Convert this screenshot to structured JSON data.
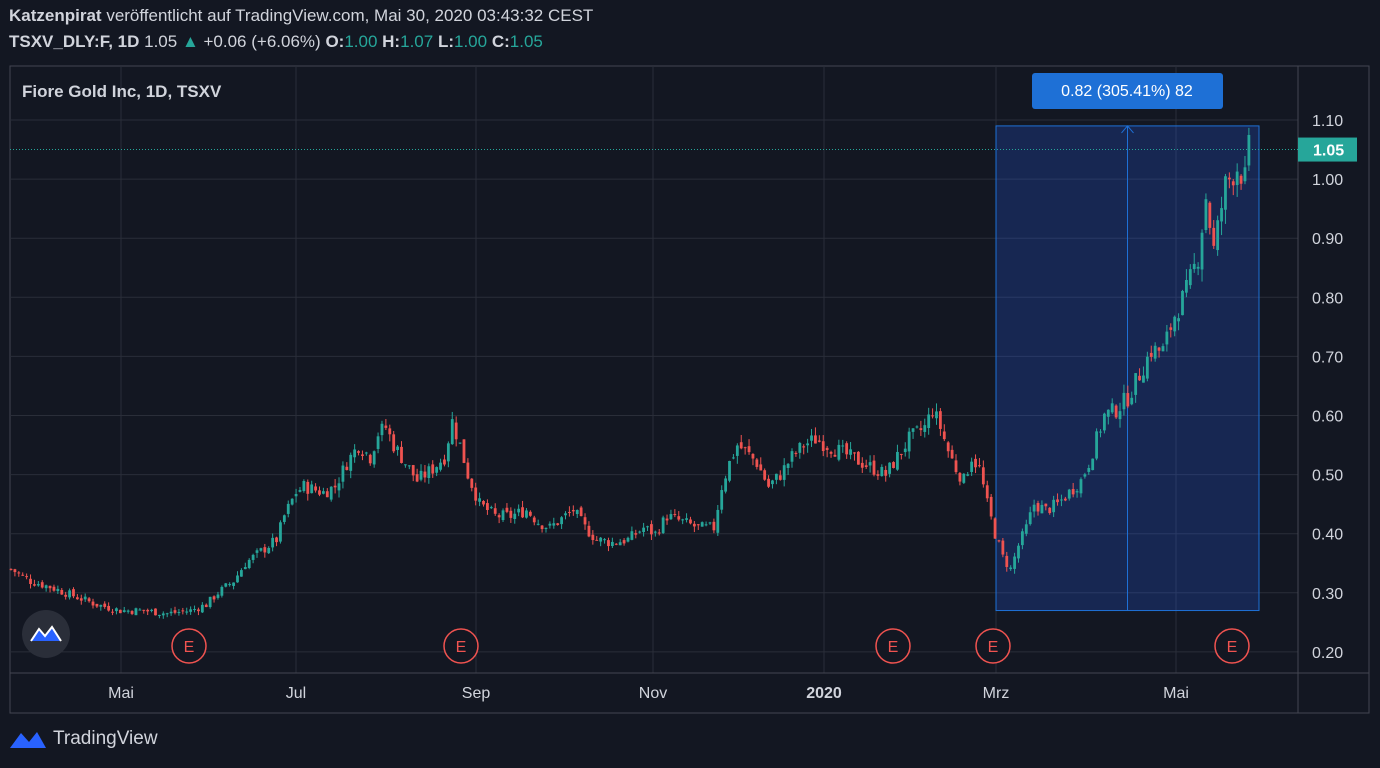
{
  "header": {
    "author": "Katzenpirat",
    "published_text": "veröffentlicht auf TradingView.com, Mai 30, 2020 03:43:32 CEST",
    "symbol": "TSXV_DLY:F, 1D",
    "last": "1.05",
    "change": "+0.06 (+6.06%)",
    "o_label": "O:",
    "o": "1.00",
    "h_label": "H:",
    "h": "1.07",
    "l_label": "L:",
    "l": "1.00",
    "c_label": "C:",
    "c": "1.05"
  },
  "chart_title": "Fiore Gold Inc, 1D, TSXV",
  "measure_label": "0.82 (305.41%) 82",
  "price_badge": "1.05",
  "footer": {
    "brand": "TradingView"
  },
  "colors": {
    "bg": "#131722",
    "grid": "#2a2e39",
    "up": "#26a69a",
    "down": "#ef5350",
    "accent": "#2962ff",
    "measure": "#1e70d6"
  },
  "chart_data": {
    "type": "candlestick",
    "title": "Fiore Gold Inc, 1D, TSXV",
    "y_ticks": [
      "0.20",
      "0.30",
      "0.40",
      "0.50",
      "0.60",
      "0.70",
      "0.80",
      "0.90",
      "1.00",
      "1.10"
    ],
    "ylim": [
      0.2,
      1.1
    ],
    "x_ticks": [
      "Mai",
      "Jul",
      "Sep",
      "Nov",
      "2020",
      "Mrz",
      "Mai"
    ],
    "earnings_marker": "E",
    "measure": {
      "from": 0.27,
      "to": 1.09,
      "change": 0.82,
      "percent": 305.41,
      "bars": 82
    },
    "last_price": 1.05,
    "close_path": [
      [
        0,
        0.34
      ],
      [
        5,
        0.32
      ],
      [
        10,
        0.31
      ],
      [
        14,
        0.3
      ],
      [
        18,
        0.29
      ],
      [
        22,
        0.28
      ],
      [
        28,
        0.27
      ],
      [
        34,
        0.27
      ],
      [
        40,
        0.265
      ],
      [
        46,
        0.27
      ],
      [
        50,
        0.28
      ],
      [
        53,
        0.3
      ],
      [
        57,
        0.32
      ],
      [
        60,
        0.35
      ],
      [
        64,
        0.37
      ],
      [
        68,
        0.39
      ],
      [
        70,
        0.43
      ],
      [
        73,
        0.47
      ],
      [
        75,
        0.48
      ],
      [
        80,
        0.47
      ],
      [
        83,
        0.48
      ],
      [
        86,
        0.52
      ],
      [
        89,
        0.55
      ],
      [
        92,
        0.53
      ],
      [
        94,
        0.57
      ],
      [
        96,
        0.58
      ],
      [
        98,
        0.55
      ],
      [
        101,
        0.52
      ],
      [
        104,
        0.49
      ],
      [
        108,
        0.51
      ],
      [
        111,
        0.53
      ],
      [
        113,
        0.59
      ],
      [
        115,
        0.55
      ],
      [
        117,
        0.5
      ],
      [
        120,
        0.45
      ],
      [
        124,
        0.43
      ],
      [
        128,
        0.43
      ],
      [
        132,
        0.44
      ],
      [
        135,
        0.42
      ],
      [
        138,
        0.41
      ],
      [
        142,
        0.43
      ],
      [
        144,
        0.44
      ],
      [
        147,
        0.41
      ],
      [
        150,
        0.39
      ],
      [
        154,
        0.385
      ],
      [
        158,
        0.39
      ],
      [
        162,
        0.41
      ],
      [
        165,
        0.4
      ],
      [
        168,
        0.43
      ],
      [
        172,
        0.42
      ],
      [
        176,
        0.41
      ],
      [
        180,
        0.41
      ],
      [
        182,
        0.48
      ],
      [
        184,
        0.52
      ],
      [
        186,
        0.55
      ],
      [
        188,
        0.54
      ],
      [
        191,
        0.52
      ],
      [
        194,
        0.48
      ],
      [
        197,
        0.5
      ],
      [
        200,
        0.53
      ],
      [
        203,
        0.55
      ],
      [
        206,
        0.56
      ],
      [
        209,
        0.55
      ],
      [
        212,
        0.54
      ],
      [
        215,
        0.53
      ],
      [
        218,
        0.52
      ],
      [
        221,
        0.51
      ],
      [
        224,
        0.5
      ],
      [
        227,
        0.53
      ],
      [
        230,
        0.56
      ],
      [
        232,
        0.57
      ],
      [
        234,
        0.58
      ],
      [
        236,
        0.61
      ],
      [
        238,
        0.58
      ],
      [
        240,
        0.54
      ],
      [
        242,
        0.51
      ],
      [
        244,
        0.49
      ],
      [
        246,
        0.53
      ],
      [
        248,
        0.51
      ],
      [
        250,
        0.45
      ],
      [
        252,
        0.4
      ],
      [
        254,
        0.36
      ],
      [
        256,
        0.34
      ],
      [
        258,
        0.38
      ],
      [
        260,
        0.41
      ],
      [
        262,
        0.45
      ],
      [
        265,
        0.44
      ],
      [
        268,
        0.45
      ],
      [
        271,
        0.47
      ],
      [
        274,
        0.49
      ],
      [
        276,
        0.52
      ],
      [
        278,
        0.56
      ],
      [
        280,
        0.6
      ],
      [
        283,
        0.61
      ],
      [
        286,
        0.63
      ],
      [
        289,
        0.67
      ],
      [
        292,
        0.71
      ],
      [
        295,
        0.71
      ],
      [
        298,
        0.77
      ],
      [
        301,
        0.81
      ],
      [
        304,
        0.87
      ],
      [
        306,
        0.97
      ],
      [
        308,
        0.88
      ],
      [
        311,
        0.99
      ],
      [
        314,
        1.02
      ],
      [
        316,
        1.0
      ],
      [
        317,
        1.05
      ]
    ]
  }
}
